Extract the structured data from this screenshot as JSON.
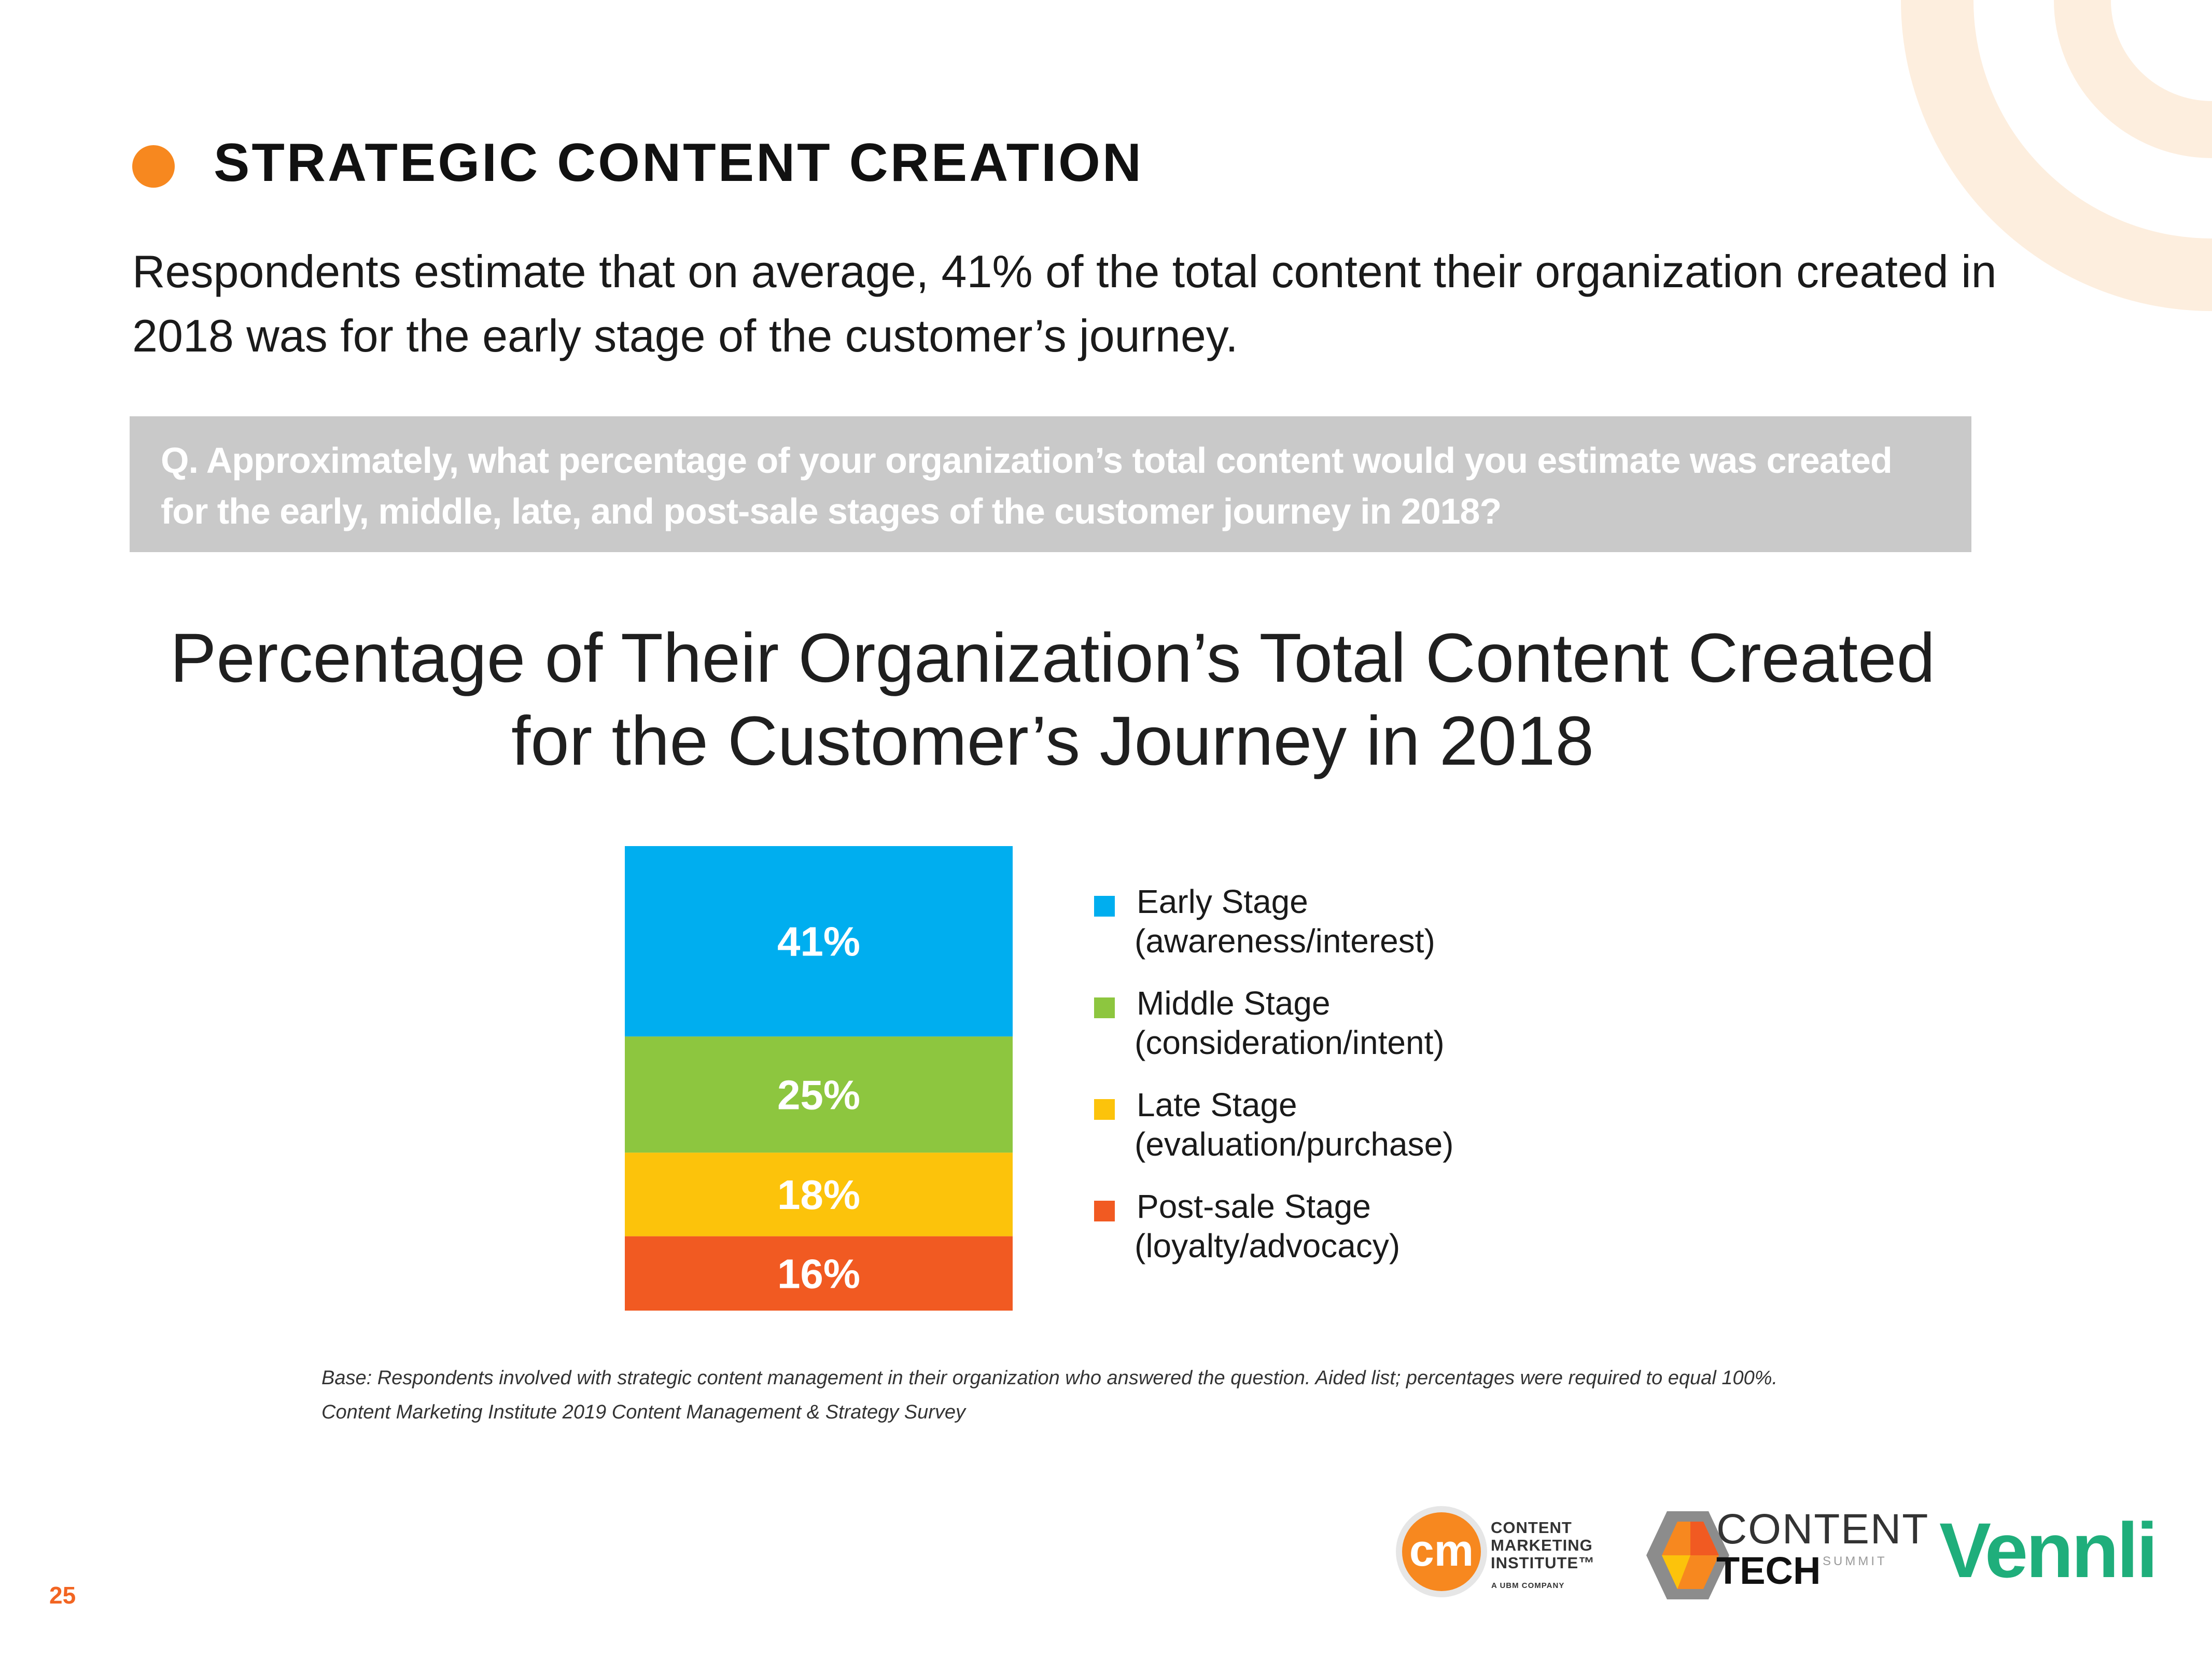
{
  "section": {
    "title": "STRATEGIC CONTENT CREATION",
    "accent_color": "#f7881f"
  },
  "intro_text": "Respondents estimate that on average, 41% of the total content their organization created in 2018 was for the early stage of the customer’s journey.",
  "question": "Q. Approximately, what percentage of your organization’s total content would you estimate was created for the early, middle, late, and post-sale stages of the customer journey in 2018?",
  "chart_data": {
    "type": "bar",
    "stacked": true,
    "title": "Percentage of Their Organization’s Total Content Created for the Customer’s Journey in 2018",
    "categories": [
      "Early Stage",
      "Middle Stage",
      "Late Stage",
      "Post-sale Stage"
    ],
    "series": [
      {
        "name": "Early Stage",
        "subtitle": "(awareness/interest)",
        "value": 41,
        "label": "41%",
        "color": "#00aeef"
      },
      {
        "name": "Middle Stage",
        "subtitle": "(consideration/intent)",
        "value": 25,
        "label": "25%",
        "color": "#8dc63f"
      },
      {
        "name": "Late Stage",
        "subtitle": "(evaluation/purchase)",
        "value": 18,
        "label": "18%",
        "color": "#fcc30b"
      },
      {
        "name": "Post-sale Stage",
        "subtitle": "(loyalty/advocacy)",
        "value": 16,
        "label": "16%",
        "color": "#f15a22"
      }
    ],
    "ylim": [
      0,
      100
    ],
    "legend": "right"
  },
  "notes": {
    "base": "Base: Respondents involved with strategic content management in their organization who answered the question. Aided list; percentages were required to equal 100%.",
    "source": "Content Marketing Institute 2019 Content Management & Strategy Survey"
  },
  "page_number": "25",
  "logos": {
    "cmi_mark": "cm",
    "cmi_line1": "CONTENT",
    "cmi_line2": "MARKETING",
    "cmi_line3": "INSTITUTE™",
    "cmi_sub": "A UBM COMPANY",
    "cts_content": "CONTENT",
    "cts_tech": "TECH",
    "cts_summit": "SUMMIT",
    "vennli": "Vennli"
  }
}
